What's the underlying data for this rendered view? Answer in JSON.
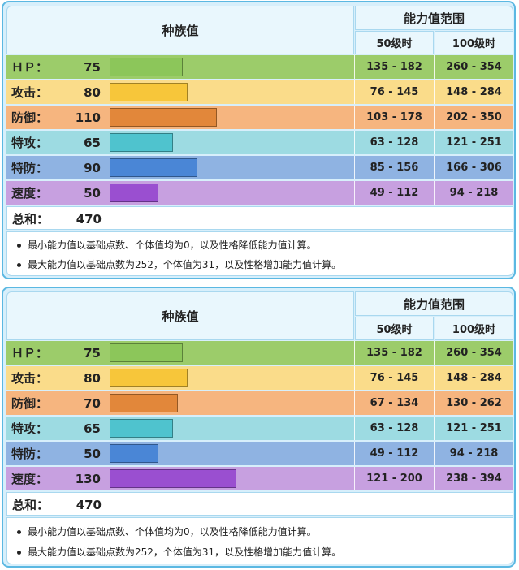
{
  "headers": {
    "base_stats": "种族值",
    "stat_range": "能力值范围",
    "level50": "50级时",
    "level100": "100级时"
  },
  "colors": {
    "hp_row": "#9ccc6a",
    "hp_bar": "#8cc65a",
    "atk_row": "#fadc8a",
    "atk_bar": "#f7c63a",
    "def_row": "#f6b57f",
    "def_bar": "#e2873a",
    "spa_row": "#9ddbe2",
    "spa_bar": "#4fc3ce",
    "spd_row": "#8fb3e2",
    "spd_bar": "#4a86d6",
    "spe_row": "#c7a0e0",
    "spe_bar": "#9a4fd0"
  },
  "panels": [
    {
      "rows": [
        {
          "name": "ＨＰ：",
          "value": "75",
          "stat": 75,
          "range50": "135 - 182",
          "range100": "260 - 354"
        },
        {
          "name": "攻击：",
          "value": "80",
          "stat": 80,
          "range50": "76 - 145",
          "range100": "148 - 284"
        },
        {
          "name": "防御：",
          "value": "110",
          "stat": 110,
          "range50": "103 - 178",
          "range100": "202 - 350"
        },
        {
          "name": "特攻：",
          "value": "65",
          "stat": 65,
          "range50": "63 - 128",
          "range100": "121 - 251"
        },
        {
          "name": "特防：",
          "value": "90",
          "stat": 90,
          "range50": "85 - 156",
          "range100": "166 - 306"
        },
        {
          "name": "速度：",
          "value": "50",
          "stat": 50,
          "range50": "49 - 112",
          "range100": "94 - 218"
        }
      ],
      "total_label": "总和：",
      "total_value": "470",
      "notes": [
        "最小能力值以基础点数、个体值均为0，以及性格降低能力值计算。",
        "最大能力值以基础点数为252，个体值为31，以及性格增加能力值计算。"
      ]
    },
    {
      "rows": [
        {
          "name": "ＨＰ：",
          "value": "75",
          "stat": 75,
          "range50": "135 - 182",
          "range100": "260 - 354"
        },
        {
          "name": "攻击：",
          "value": "80",
          "stat": 80,
          "range50": "76 - 145",
          "range100": "148 - 284"
        },
        {
          "name": "防御：",
          "value": "70",
          "stat": 70,
          "range50": "67 - 134",
          "range100": "130 - 262"
        },
        {
          "name": "特攻：",
          "value": "65",
          "stat": 65,
          "range50": "63 - 128",
          "range100": "121 - 251"
        },
        {
          "name": "特防：",
          "value": "50",
          "stat": 50,
          "range50": "49 - 112",
          "range100": "94 - 218"
        },
        {
          "name": "速度：",
          "value": "130",
          "stat": 130,
          "range50": "121 - 200",
          "range100": "238 - 394"
        }
      ],
      "total_label": "总和：",
      "total_value": "470",
      "notes": [
        "最小能力值以基础点数、个体值均为0，以及性格降低能力值计算。",
        "最大能力值以基础点数为252，个体值为31，以及性格增加能力值计算。"
      ]
    }
  ]
}
